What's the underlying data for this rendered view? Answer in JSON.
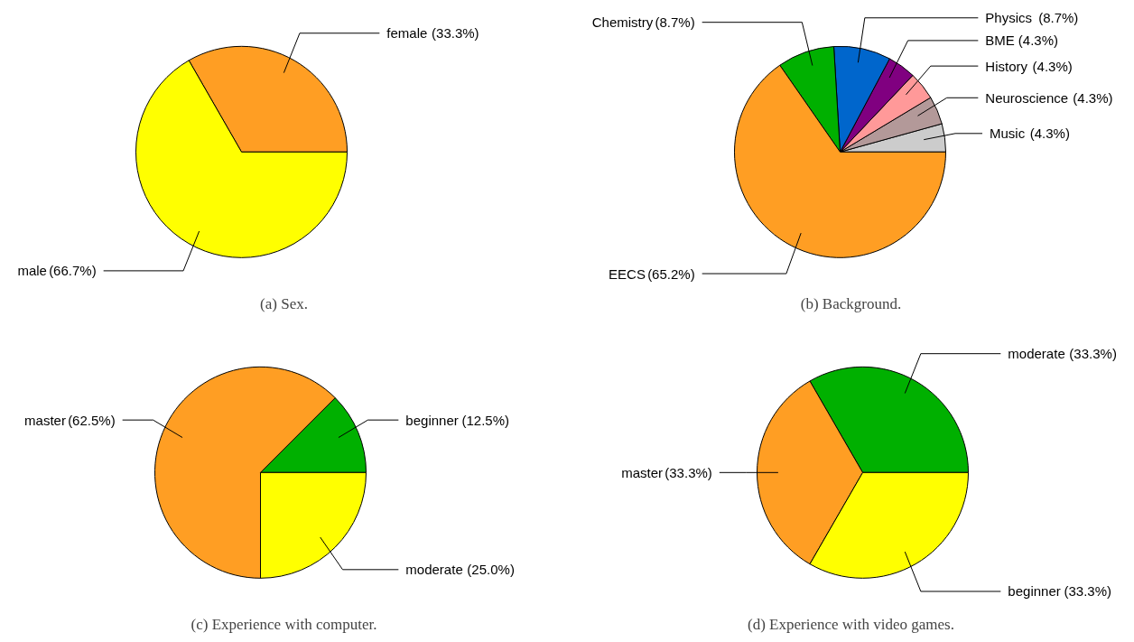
{
  "chart_data": [
    {
      "type": "pie",
      "title": "(a) Sex.",
      "categories": [
        "female",
        "male"
      ],
      "values": [
        33.3,
        66.7
      ],
      "colors": [
        "#ff9e23",
        "#ffff00"
      ],
      "value_labels": [
        "(33.3%)",
        "(66.7%)"
      ]
    },
    {
      "type": "pie",
      "title": "(b) Background.",
      "categories": [
        "Music",
        "Neuroscience",
        "History",
        "BME",
        "Physics",
        "Chemistry",
        "EECS"
      ],
      "values": [
        4.3,
        4.3,
        4.3,
        4.3,
        8.7,
        8.7,
        65.2
      ],
      "colors": [
        "#cccccc",
        "#b39999",
        "#ff9999",
        "#800080",
        "#0066cc",
        "#00b000",
        "#ff9e23"
      ],
      "value_labels": [
        "(4.3%)",
        "(4.3%)",
        "(4.3%)",
        "(4.3%)",
        "(8.7%)",
        "(8.7%)",
        "(65.2%)"
      ]
    },
    {
      "type": "pie",
      "title": "(c) Experience with computer.",
      "categories": [
        "beginner",
        "master",
        "moderate"
      ],
      "values": [
        12.5,
        62.5,
        25.0
      ],
      "colors": [
        "#00b000",
        "#ff9e23",
        "#ffff00"
      ],
      "value_labels": [
        "(12.5%)",
        "(62.5%)",
        "(25.0%)"
      ]
    },
    {
      "type": "pie",
      "title": "(d) Experience with video games.",
      "categories": [
        "moderate",
        "master",
        "beginner"
      ],
      "values": [
        33.3,
        33.3,
        33.3
      ],
      "colors": [
        "#00b000",
        "#ff9e23",
        "#ffff00"
      ],
      "value_labels": [
        "(33.3%)",
        "(33.3%)",
        "(33.3%)"
      ]
    }
  ]
}
